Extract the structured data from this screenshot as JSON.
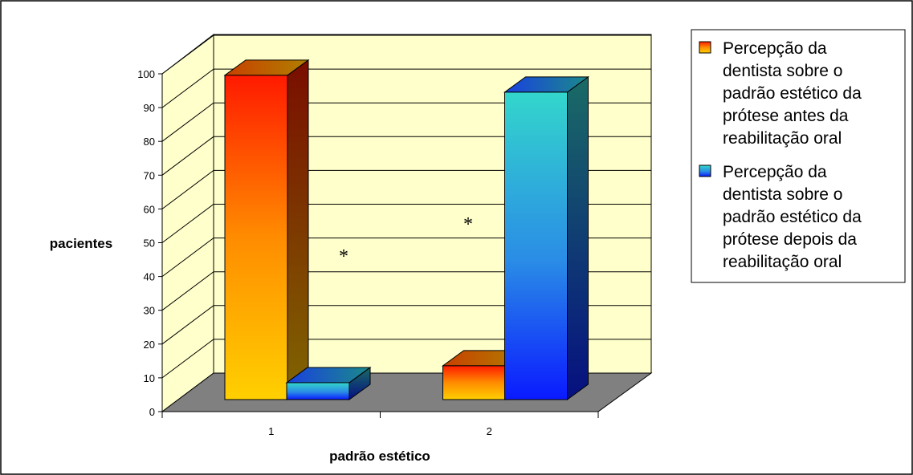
{
  "chart_data": {
    "type": "bar",
    "categories": [
      "1",
      "2"
    ],
    "series": [
      {
        "name": "Percepção da dentista sobre o padrão estético da prótese antes da reabilitação oral",
        "lines": [
          "Percepção da",
          "dentista sobre o",
          "padrão estético da",
          "prótese antes da",
          "reabilitação oral"
        ],
        "values": [
          96,
          10
        ],
        "color": "#ff6600"
      },
      {
        "name": "Percepção da dentista sobre o padrão estético da prótese depois da reabilitação oral",
        "lines": [
          "Percepção da",
          "dentista sobre o",
          "padrão estético da",
          "prótese depois da",
          "reabilitação oral"
        ],
        "values": [
          5,
          91
        ],
        "color": "#1e90ff"
      }
    ],
    "ylim": [
      0,
      100
    ],
    "yticks": [
      "0",
      "10",
      "20",
      "30",
      "40",
      "50",
      "60",
      "70",
      "80",
      "90",
      "100"
    ],
    "xlabel": "padrão estético",
    "ylabel": "pacientes",
    "annotations": [
      "*",
      "*"
    ],
    "grid": true,
    "legend_position": "right",
    "colors": {
      "back_wall": "#ffffcc",
      "floor": "#808080"
    }
  }
}
